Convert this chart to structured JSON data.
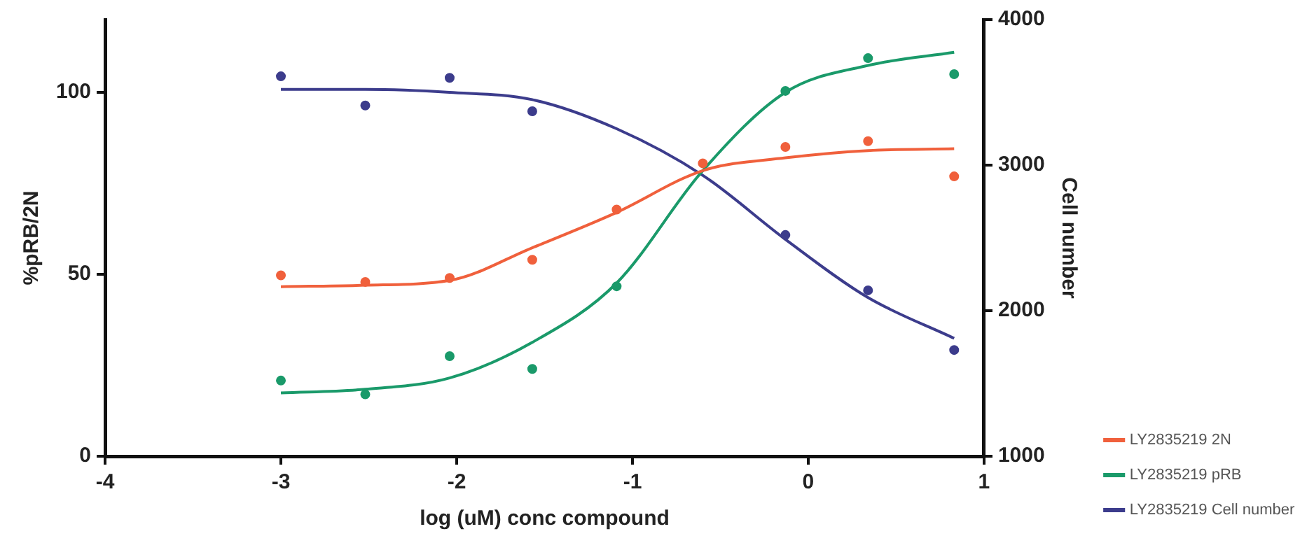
{
  "chart_data": {
    "type": "scatter",
    "xlabel": "log (uM) conc compound",
    "ylabel": "%pRB/2N",
    "y2label": "Cell number",
    "xlim": [
      -4,
      1
    ],
    "xticks": [
      -4,
      -3,
      -2,
      -1,
      0,
      1
    ],
    "ylim": [
      0,
      120
    ],
    "yticks": [
      0,
      50,
      100
    ],
    "y2lim": [
      1000,
      4000
    ],
    "y2ticks": [
      1000,
      2000,
      3000,
      4000
    ],
    "grid": false,
    "legend": "bottom right",
    "x": [
      -3,
      -2.52,
      -2.04,
      -1.57,
      -1.09,
      -0.6,
      -0.13,
      0.34,
      0.83
    ],
    "series": [
      {
        "name": "LY2835219 2N",
        "marker": "circle",
        "color": "#f0603c",
        "values": [
          49.7,
          47.9,
          49,
          54,
          67.8,
          80.5,
          85,
          86.6,
          76.9
        ]
      },
      {
        "name": "LY2835219 pRB",
        "marker": "circle",
        "color": "#1a9a6a",
        "values": [
          20.8,
          17,
          27.5,
          24,
          46.7,
          null,
          100.4,
          109.4,
          105
        ]
      },
      {
        "name": "LY2835219 Cell number",
        "marker": "circle",
        "axis": "y2",
        "color": "#3c3c8c",
        "values": [
          3610,
          3410,
          3600,
          3370,
          null,
          null,
          2520,
          2140,
          1730
        ]
      },
      {
        "type": "line",
        "marker": "none",
        "color": "#f0603c",
        "values": [
          46.6,
          47,
          48.3,
          57.3,
          67,
          78.5,
          82,
          84,
          84.5
        ]
      },
      {
        "type": "line",
        "marker": "none",
        "color": "#1a9a6a",
        "values": [
          17.4,
          18.4,
          21.5,
          31.3,
          47.6,
          78.5,
          100,
          107.4,
          111
        ]
      },
      {
        "type": "line",
        "marker": "none",
        "axis": "y2",
        "color": "#3c3c8c",
        "values": [
          3520,
          3520,
          3500,
          3450,
          3250,
          2930,
          2490,
          2090,
          1810
        ]
      }
    ]
  }
}
